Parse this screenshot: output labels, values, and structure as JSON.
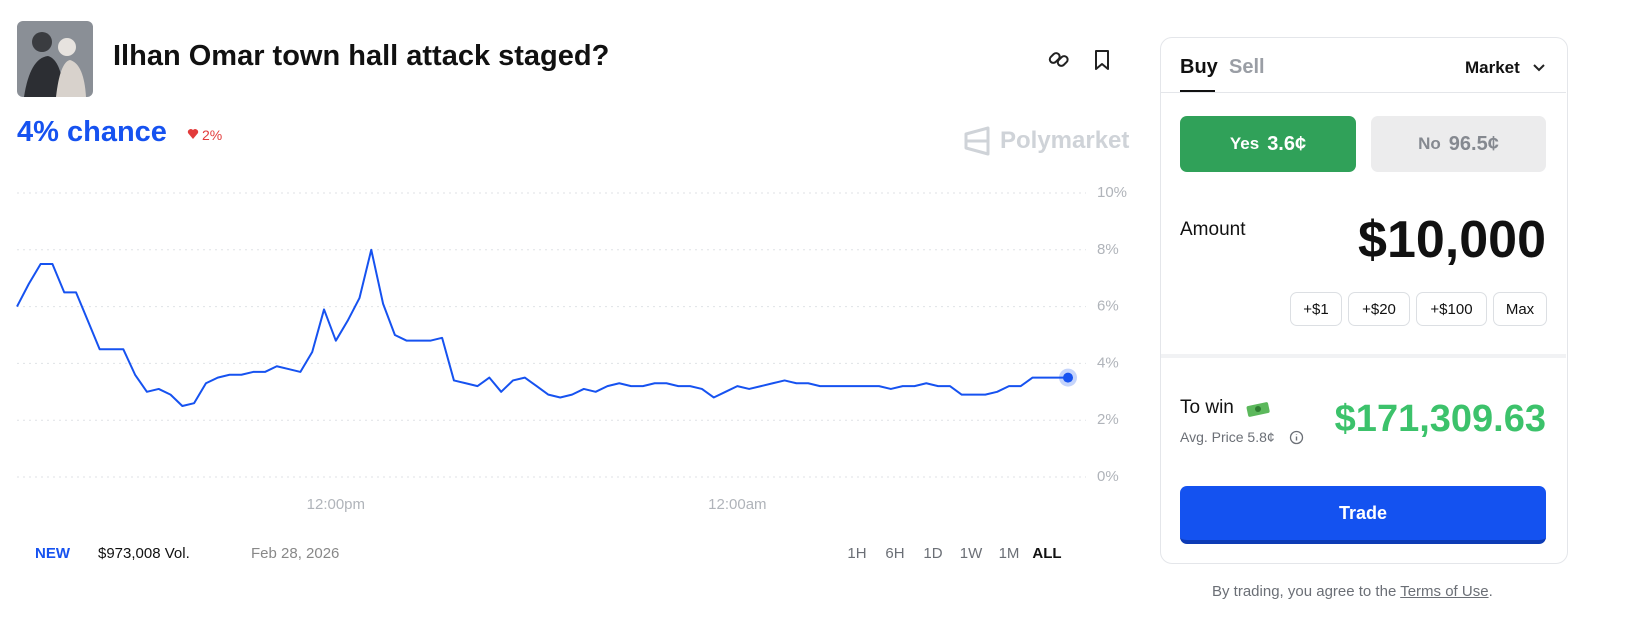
{
  "header": {
    "title": "Ilhan Omar town hall attack staged?",
    "chance": "4% chance",
    "change": "2%",
    "watermark": "Polymarket"
  },
  "chart_data": {
    "type": "line",
    "categories": [
      null,
      null,
      null,
      null,
      null,
      null,
      null,
      null,
      null,
      null,
      null,
      null,
      null,
      null,
      null,
      null,
      null,
      null,
      null,
      null,
      null,
      null,
      null,
      null,
      null,
      null,
      null,
      "12:00pm",
      null,
      null,
      null,
      null,
      null,
      null,
      null,
      null,
      null,
      null,
      null,
      null,
      null,
      null,
      null,
      null,
      null,
      null,
      null,
      null,
      null,
      null,
      null,
      null,
      null,
      null,
      null,
      null,
      null,
      null,
      null,
      null,
      null,
      "12:00am",
      null,
      null,
      null,
      null,
      null,
      null,
      null,
      null,
      null,
      null,
      null,
      null,
      null,
      null,
      null,
      null,
      null,
      null,
      null,
      null,
      null,
      null,
      null,
      null,
      null,
      null,
      null,
      null
    ],
    "series": [
      {
        "color": "#1652f0",
        "values": [
          6.0,
          6.8,
          7.5,
          7.5,
          6.5,
          6.5,
          5.5,
          4.5,
          4.5,
          4.5,
          3.6,
          3.0,
          3.1,
          2.9,
          2.5,
          2.6,
          3.3,
          3.5,
          3.6,
          3.6,
          3.7,
          3.7,
          3.9,
          3.8,
          3.7,
          4.4,
          5.9,
          4.8,
          5.5,
          6.3,
          8.0,
          6.1,
          5.0,
          4.8,
          4.8,
          4.8,
          4.9,
          3.4,
          3.3,
          3.2,
          3.5,
          3.0,
          3.4,
          3.5,
          3.2,
          2.9,
          2.8,
          2.9,
          3.1,
          3.0,
          3.2,
          3.3,
          3.2,
          3.2,
          3.3,
          3.3,
          3.2,
          3.2,
          3.1,
          2.8,
          3.0,
          3.2,
          3.1,
          3.2,
          3.3,
          3.4,
          3.3,
          3.3,
          3.2,
          3.2,
          3.2,
          3.2,
          3.2,
          3.2,
          3.1,
          3.2,
          3.2,
          3.3,
          3.2,
          3.2,
          2.9,
          2.9,
          2.9,
          3.0,
          3.2,
          3.2,
          3.5,
          3.5,
          3.5,
          3.5
        ]
      }
    ],
    "ylim": [
      0,
      10
    ],
    "yticks": [
      {
        "value": 0,
        "label": "0%"
      },
      {
        "value": 2,
        "label": "2%"
      },
      {
        "value": 4,
        "label": "4%"
      },
      {
        "value": 6,
        "label": "6%"
      },
      {
        "value": 8,
        "label": "8%"
      },
      {
        "value": 10,
        "label": "10%"
      }
    ],
    "grid": true
  },
  "footer": {
    "badge": "NEW",
    "volume": "$973,008 Vol.",
    "date": "Feb 28, 2026",
    "ranges": [
      "1H",
      "6H",
      "1D",
      "1W",
      "1M",
      "ALL"
    ]
  },
  "trade": {
    "buy": "Buy",
    "sell": "Sell",
    "order_type": "Market",
    "yes": "Yes",
    "yes_price": "3.6¢",
    "no": "No",
    "no_price": "96.5¢",
    "amount_label": "Amount",
    "amount": "$10,000",
    "chips": [
      "+$1",
      "+$20",
      "+$100",
      "Max"
    ],
    "to_win_label": "To win",
    "avg_price": "Avg. Price 5.8¢",
    "to_win": "$171,309.63",
    "button": "Trade"
  },
  "terms": {
    "prefix": "By trading, you agree to the",
    "link": "Terms of Use",
    "suffix": "."
  }
}
